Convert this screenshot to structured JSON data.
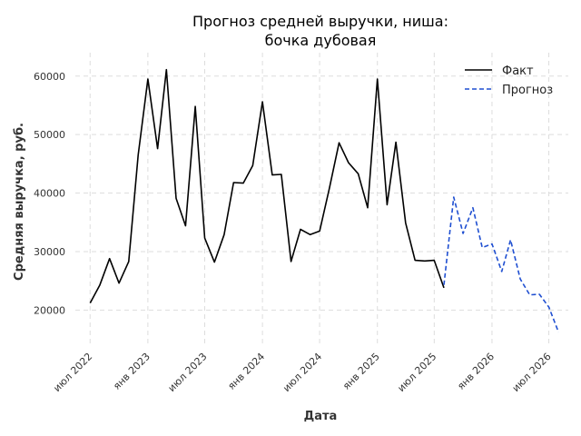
{
  "chart_data": {
    "type": "line",
    "title_lines": [
      "Прогноз средней выручки, ниша:",
      "бочка дубовая"
    ],
    "xlabel": "Дата",
    "ylabel": "Средняя выручка, руб.",
    "ylim": [
      14000,
      64000
    ],
    "yticks": [
      {
        "value": 20000,
        "label": "20000"
      },
      {
        "value": 30000,
        "label": "30000"
      },
      {
        "value": 40000,
        "label": "40000"
      },
      {
        "value": 50000,
        "label": "50000"
      },
      {
        "value": 60000,
        "label": "60000"
      }
    ],
    "xlim": [
      "2022-05-15",
      "2026-09-01"
    ],
    "xticks": [
      {
        "date": "2022-07-01",
        "label": "июл 2022"
      },
      {
        "date": "2023-01-01",
        "label": "янв 2023"
      },
      {
        "date": "2023-07-01",
        "label": "июл 2023"
      },
      {
        "date": "2024-01-01",
        "label": "янв 2024"
      },
      {
        "date": "2024-07-01",
        "label": "июл 2024"
      },
      {
        "date": "2025-01-01",
        "label": "янв 2025"
      },
      {
        "date": "2025-07-01",
        "label": "июл 2025"
      },
      {
        "date": "2026-01-01",
        "label": "янв 2026"
      },
      {
        "date": "2026-07-01",
        "label": "июл 2026"
      }
    ],
    "grid": true,
    "legend_position": "top-right",
    "series": [
      {
        "name": "Факт",
        "color": "#000000",
        "style": "solid",
        "points": [
          [
            "2022-07-01",
            21200
          ],
          [
            "2022-08-01",
            24300
          ],
          [
            "2022-09-01",
            28800
          ],
          [
            "2022-10-01",
            24600
          ],
          [
            "2022-11-01",
            28300
          ],
          [
            "2022-12-01",
            46500
          ],
          [
            "2023-01-01",
            59500
          ],
          [
            "2023-02-01",
            47600
          ],
          [
            "2023-03-01",
            61100
          ],
          [
            "2023-04-01",
            39100
          ],
          [
            "2023-05-01",
            34400
          ],
          [
            "2023-06-01",
            54800
          ],
          [
            "2023-07-01",
            32300
          ],
          [
            "2023-08-01",
            28200
          ],
          [
            "2023-09-01",
            32900
          ],
          [
            "2023-10-01",
            41800
          ],
          [
            "2023-11-01",
            41700
          ],
          [
            "2023-12-01",
            44700
          ],
          [
            "2024-01-01",
            55600
          ],
          [
            "2024-02-01",
            43100
          ],
          [
            "2024-03-01",
            43200
          ],
          [
            "2024-04-01",
            28300
          ],
          [
            "2024-05-01",
            33800
          ],
          [
            "2024-06-01",
            32900
          ],
          [
            "2024-07-01",
            33500
          ],
          [
            "2024-08-01",
            40800
          ],
          [
            "2024-09-01",
            48600
          ],
          [
            "2024-10-01",
            45200
          ],
          [
            "2024-11-01",
            43300
          ],
          [
            "2024-12-01",
            37500
          ],
          [
            "2025-01-01",
            59500
          ],
          [
            "2025-02-01",
            38000
          ],
          [
            "2025-03-01",
            48700
          ],
          [
            "2025-04-01",
            34900
          ],
          [
            "2025-05-01",
            28500
          ],
          [
            "2025-06-01",
            28400
          ],
          [
            "2025-07-01",
            28500
          ],
          [
            "2025-08-01",
            23800
          ]
        ]
      },
      {
        "name": "Прогноз",
        "color": "#1f4fd1",
        "style": "dashed",
        "points": [
          [
            "2025-08-01",
            24300
          ],
          [
            "2025-09-01",
            39300
          ],
          [
            "2025-10-01",
            33100
          ],
          [
            "2025-11-01",
            37500
          ],
          [
            "2025-12-01",
            30700
          ],
          [
            "2026-01-01",
            31300
          ],
          [
            "2026-02-01",
            26600
          ],
          [
            "2026-03-01",
            32000
          ],
          [
            "2026-04-01",
            25300
          ],
          [
            "2026-05-01",
            22600
          ],
          [
            "2026-06-01",
            22700
          ],
          [
            "2026-07-01",
            20500
          ],
          [
            "2026-08-01",
            16200
          ]
        ]
      }
    ]
  }
}
